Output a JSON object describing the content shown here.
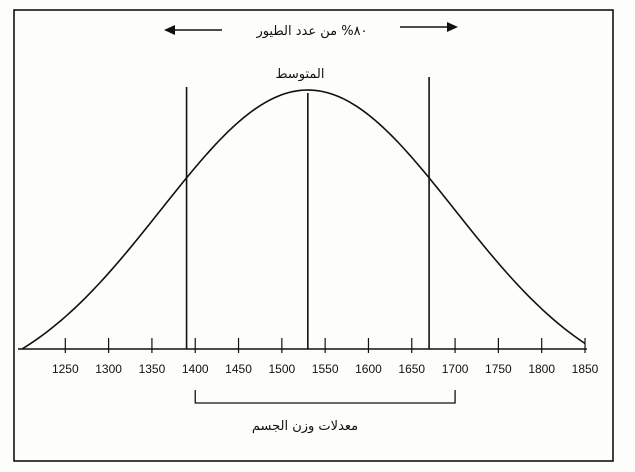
{
  "chart_data": {
    "type": "line",
    "title": "",
    "top_annotation": "٨٠% من عدد الطيور",
    "mean_label": "المتوسط",
    "xlabel": "معدلات وزن الجسم",
    "ylabel": "",
    "x_ticks": [
      {
        "value": 1250,
        "label": "1250"
      },
      {
        "value": 1300,
        "label": "1300"
      },
      {
        "value": 1350,
        "label": "1350"
      },
      {
        "value": 1400,
        "label": "1400"
      },
      {
        "value": 1450,
        "label": "1450"
      },
      {
        "value": 1500,
        "label": "1500"
      },
      {
        "value": 1550,
        "label": "1550"
      },
      {
        "value": 1600,
        "label": "1600"
      },
      {
        "value": 1650,
        "label": "1650"
      },
      {
        "value": 1700,
        "label": "1700"
      },
      {
        "value": 1750,
        "label": "1750"
      },
      {
        "value": 1800,
        "label": "1800"
      },
      {
        "value": 1850,
        "label": "1850"
      }
    ],
    "xlim": [
      1200,
      1850
    ],
    "distribution": {
      "shape": "normal",
      "mean": 1530,
      "sd": 170
    },
    "reference_lines": [
      {
        "name": "lower-bound",
        "x": 1390
      },
      {
        "name": "mean",
        "x": 1530
      },
      {
        "name": "upper-bound",
        "x": 1670
      }
    ],
    "bracket": {
      "from": 1400,
      "to": 1700
    },
    "grid": false,
    "legend": "none"
  },
  "colors": {
    "ink": "#111111",
    "paper": "#fdfdfb"
  }
}
